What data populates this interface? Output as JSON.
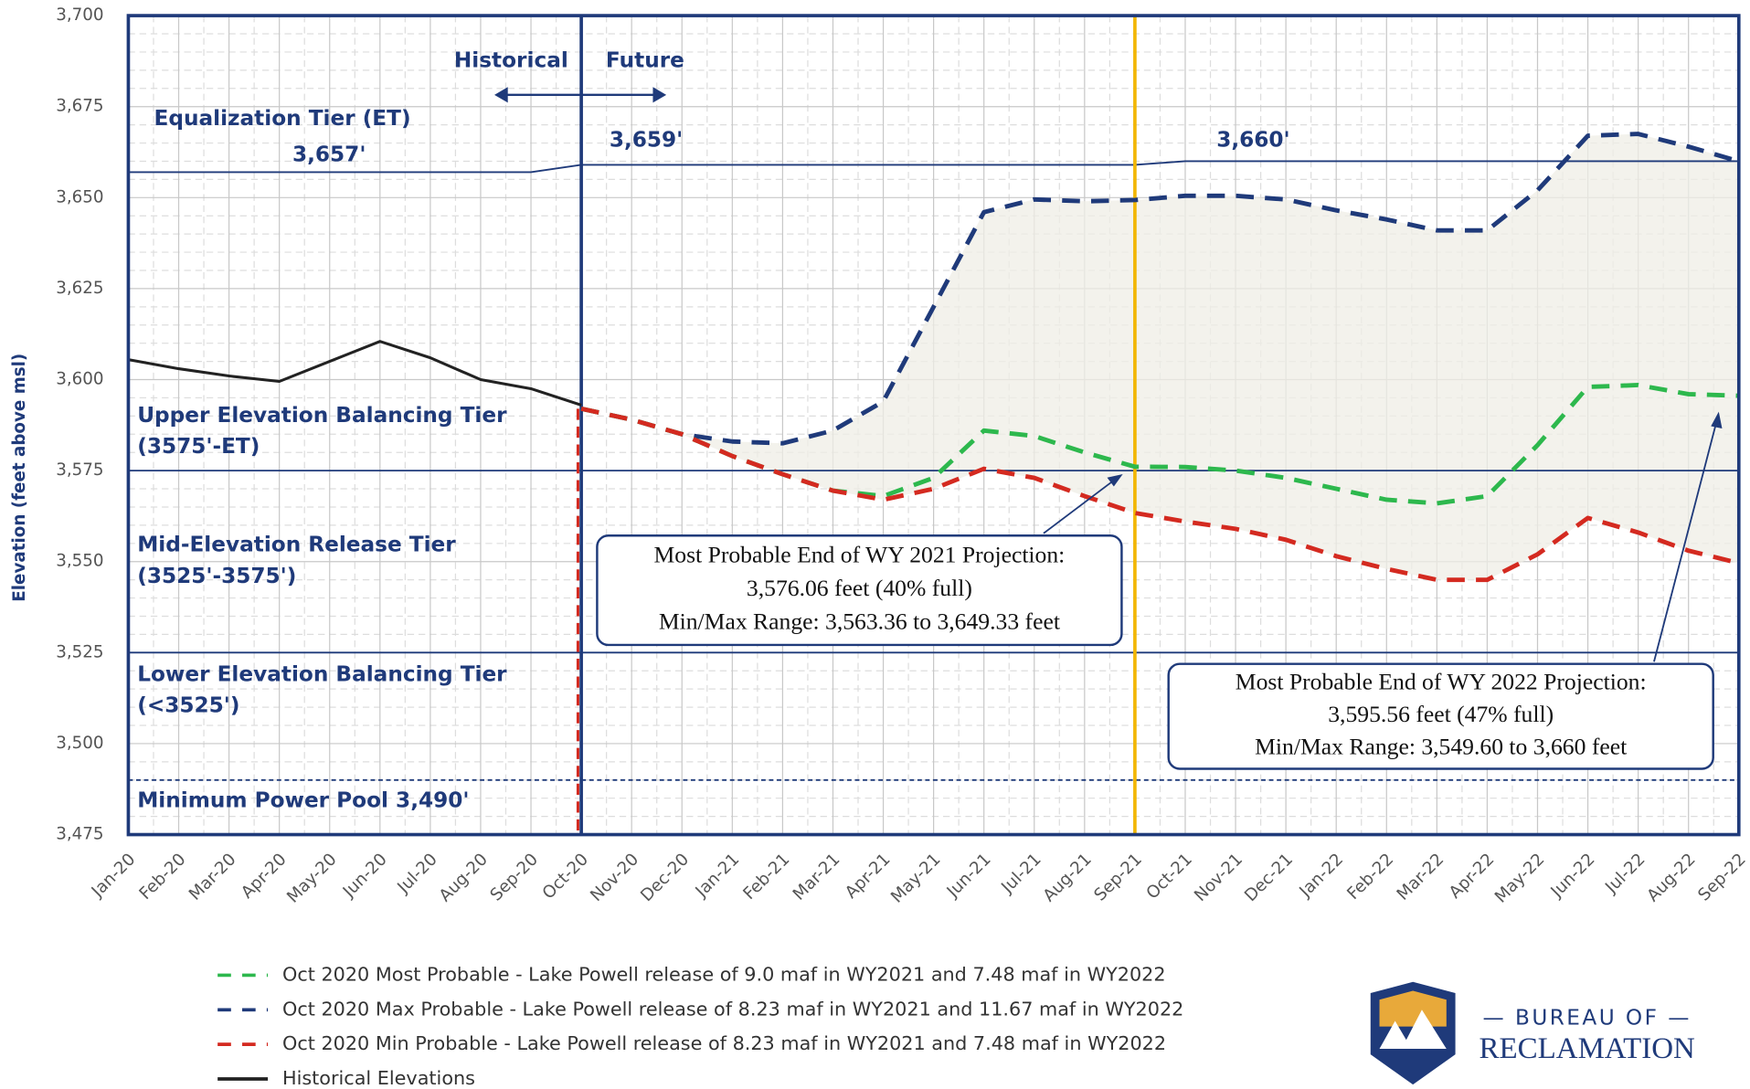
{
  "chart_data": {
    "type": "line",
    "y_label": "Elevation (feet above msl)",
    "categories": [
      "Jan-20",
      "Feb-20",
      "Mar-20",
      "Apr-20",
      "May-20",
      "Jun-20",
      "Jul-20",
      "Aug-20",
      "Sep-20",
      "Oct-20",
      "Nov-20",
      "Dec-20",
      "Jan-21",
      "Feb-21",
      "Mar-21",
      "Apr-21",
      "May-21",
      "Jun-21",
      "Jul-21",
      "Aug-21",
      "Sep-21",
      "Oct-21",
      "Nov-21",
      "Dec-21",
      "Jan-22",
      "Feb-22",
      "Mar-22",
      "Apr-22",
      "May-22",
      "Jun-22",
      "Jul-22",
      "Aug-22",
      "Sep-22"
    ],
    "ylim": [
      3475,
      3700
    ],
    "yticks": [
      {
        "value": 3475,
        "label": "3,475"
      },
      {
        "value": 3500,
        "label": "3,500"
      },
      {
        "value": 3525,
        "label": "3,525"
      },
      {
        "value": 3550,
        "label": "3,550"
      },
      {
        "value": 3575,
        "label": "3,575"
      },
      {
        "value": 3600,
        "label": "3,600"
      },
      {
        "value": 3625,
        "label": "3,625"
      },
      {
        "value": 3650,
        "label": "3,650"
      },
      {
        "value": 3675,
        "label": "3,675"
      },
      {
        "value": 3700,
        "label": "3,700"
      }
    ],
    "grid": true,
    "series": [
      {
        "name": "Oct 2020 Most Probable - Lake Powell release of 9.0 maf in WY2021 and 7.48 maf in WY2022",
        "color": "#2db84d",
        "dash": true,
        "values": [
          null,
          null,
          null,
          null,
          null,
          null,
          null,
          null,
          null,
          3592,
          3589,
          3585,
          3579,
          3574,
          3569.5,
          3568,
          3573,
          3586,
          3584.5,
          3580,
          3576.06,
          3576,
          3575,
          3573,
          3570,
          3567,
          3566,
          3568,
          3582,
          3598,
          3598.5,
          3596,
          3595.56
        ]
      },
      {
        "name": "Oct 2020 Max Probable - Lake Powell release of 8.23 maf in WY2021 and 11.67 maf in WY2022",
        "color": "#1f3a7a",
        "dash": true,
        "values": [
          null,
          null,
          null,
          null,
          null,
          null,
          null,
          null,
          null,
          3592,
          3589,
          3585,
          3583,
          3582.5,
          3586,
          3594,
          3620,
          3646,
          3649.5,
          3649,
          3649.33,
          3650.5,
          3650.5,
          3649.5,
          3646.5,
          3644,
          3641,
          3641,
          3652,
          3667,
          3667.5,
          3664,
          3660
        ]
      },
      {
        "name": "Oct 2020 Min Probable - Lake Powell release of 8.23 maf in WY2021 and 7.48 maf in WY2022",
        "color": "#d42a20",
        "dash": true,
        "values": [
          null,
          null,
          null,
          null,
          null,
          null,
          null,
          null,
          null,
          3592,
          3589,
          3585,
          3579,
          3574,
          3569.5,
          3567,
          3570,
          3575.5,
          3573,
          3568,
          3563.36,
          3561,
          3559,
          3556,
          3551.5,
          3548,
          3545,
          3545,
          3552,
          3562,
          3558,
          3553,
          3549.6
        ]
      },
      {
        "name": "Historical Elevations",
        "color": "#222222",
        "dash": false,
        "values": [
          3605.5,
          3603,
          3601,
          3599.5,
          3605,
          3610.5,
          3606,
          3600,
          3597.5,
          3593,
          null,
          null,
          null,
          null,
          null,
          null,
          null,
          null,
          null,
          null,
          null,
          null,
          null,
          null,
          null,
          null,
          null,
          null,
          null,
          null,
          null,
          null,
          null
        ]
      }
    ],
    "equalization_line": {
      "color": "#1f3a7a",
      "values": [
        3657,
        3657,
        3657,
        3657,
        3657,
        3657,
        3657,
        3657,
        3657,
        3659,
        3659,
        3659,
        3659,
        3659,
        3659,
        3659,
        3659,
        3659,
        3659,
        3659,
        3659,
        3660,
        3660,
        3660,
        3660,
        3660,
        3660,
        3660,
        3660,
        3660,
        3660,
        3660,
        3660
      ]
    },
    "tier_lines": [
      {
        "value": 3575,
        "dotted": false
      },
      {
        "value": 3525,
        "dotted": false
      },
      {
        "value": 3490,
        "dotted": true
      }
    ],
    "vertical_lines": [
      {
        "category": 9,
        "color": "#1f3a7a"
      },
      {
        "category": 20,
        "color": "#f2b600"
      }
    ],
    "labels": {
      "historical": "Historical",
      "future": "Future",
      "et": "Equalization Tier (ET)",
      "et1": "3,657'",
      "et2": "3,659'",
      "et3": "3,660'",
      "upper1": "Upper Elevation Balancing Tier",
      "upper2": "(3575'-ET)",
      "mid1": "Mid-Elevation Release Tier",
      "mid2": "(3525'-3575')",
      "lower1": "Lower Elevation Balancing Tier",
      "lower2": "(<3525')",
      "mpp": "Minimum Power Pool  3,490'"
    },
    "callouts": [
      {
        "lines": [
          "Most Probable End of WY 2021 Projection:",
          "3,576.06 feet (40% full)",
          "Min/Max Range: 3,563.36 to 3,649.33 feet"
        ]
      },
      {
        "lines": [
          "Most Probable End of WY 2022 Projection:",
          "3,595.56 feet (47% full)",
          "Min/Max Range: 3,549.60 to 3,660 feet"
        ]
      }
    ]
  },
  "logo": {
    "line1": "— BUREAU OF —",
    "line2": "RECLAMATION"
  }
}
